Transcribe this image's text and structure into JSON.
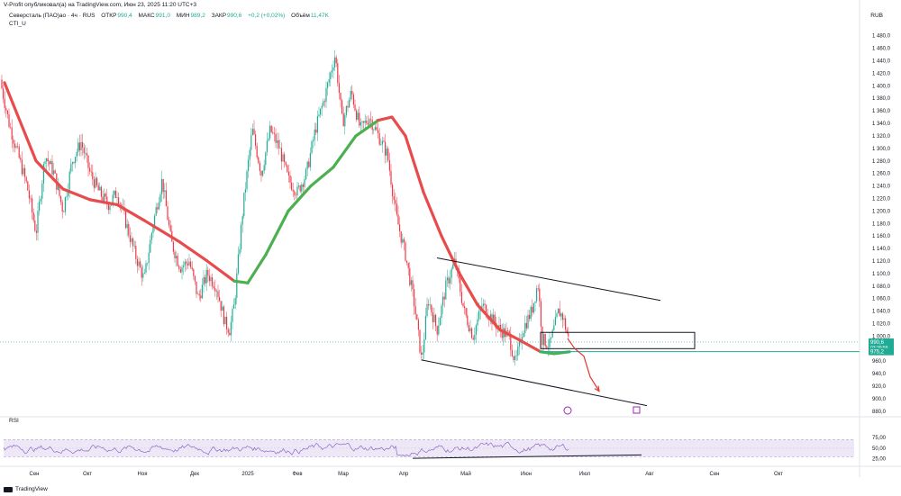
{
  "header": {
    "published": "V-Profit опубликовал(а) на TradingView.com, Июн 23, 2025 11:20 UTC+3"
  },
  "legend": {
    "symbol": "Северсталь (ПАО)ао · 4ч · RUS",
    "open_label": "ОТКР",
    "open": "990,4",
    "high_label": "МАКС",
    "high": "991,0",
    "low_label": "МИН",
    "low": "989,2",
    "close_label": "ЗАКР",
    "close": "990,6",
    "change": "+0,2 (+0,02%)",
    "volume_label": "Объём",
    "volume": "11,47K"
  },
  "indicator_label": "CTI_U",
  "currency": "RUB",
  "rsi_label": "RSI",
  "footer_brand": "TradingView",
  "colors": {
    "up": "#22ab94",
    "down": "#f23645",
    "cti_up": "#4caf50",
    "cti_down": "#e84b4b",
    "rsi_line": "#7e57c2",
    "rsi_band": "#ede7f6",
    "price_label": "#22ab94",
    "arrow": "#e53935"
  },
  "chart_data": [
    {
      "type": "candlestick",
      "title": "",
      "yaxis_ticks": [
        "1 480,0",
        "1 460,0",
        "1 440,0",
        "1 420,0",
        "1 400,0",
        "1 380,0",
        "1 360,0",
        "1 340,0",
        "1 320,0",
        "1 300,0",
        "1 280,0",
        "1 260,0",
        "1 240,0",
        "1 220,0",
        "1 200,0",
        "1 180,0",
        "1 160,0",
        "1 140,0",
        "1 120,0",
        "1 100,0",
        "1 080,0",
        "1 060,0",
        "1 040,0",
        "1 020,0",
        "1 000,0",
        "960,0",
        "940,0",
        "920,0",
        "900,0",
        "880,0"
      ],
      "yaxis_tick_values": [
        1480,
        1460,
        1440,
        1420,
        1400,
        1380,
        1360,
        1340,
        1320,
        1300,
        1280,
        1260,
        1240,
        1220,
        1200,
        1180,
        1160,
        1140,
        1120,
        1100,
        1080,
        1060,
        1040,
        1020,
        1000,
        960,
        940,
        920,
        900,
        880
      ],
      "ylim": [
        874,
        1494
      ],
      "xaxis_ticks": [
        "Сен",
        "Окт",
        "Ноя",
        "Дек",
        "2025",
        "Фев",
        "Мар",
        "Апр",
        "Май",
        "Июн",
        "Июл",
        "Авг",
        "Сен",
        "Окт"
      ],
      "price_labels": [
        {
          "value": 990.6,
          "text": "990,6",
          "sub": "03:39:59"
        },
        {
          "value": 975.2,
          "text": "975,2"
        }
      ],
      "price_path": [
        [
          0,
          1410
        ],
        [
          10,
          1340
        ],
        [
          20,
          1290
        ],
        [
          30,
          1240
        ],
        [
          40,
          1165
        ],
        [
          50,
          1290
        ],
        [
          60,
          1260
        ],
        [
          70,
          1200
        ],
        [
          80,
          1280
        ],
        [
          90,
          1310
        ],
        [
          100,
          1260
        ],
        [
          110,
          1230
        ],
        [
          120,
          1210
        ],
        [
          130,
          1230
        ],
        [
          140,
          1180
        ],
        [
          150,
          1130
        ],
        [
          160,
          1090
        ],
        [
          170,
          1180
        ],
        [
          180,
          1250
        ],
        [
          190,
          1150
        ],
        [
          200,
          1110
        ],
        [
          210,
          1120
        ],
        [
          220,
          1060
        ],
        [
          230,
          1100
        ],
        [
          240,
          1080
        ],
        [
          250,
          1020
        ],
        [
          255,
          1010
        ],
        [
          260,
          1050
        ],
        [
          270,
          1210
        ],
        [
          280,
          1330
        ],
        [
          290,
          1260
        ],
        [
          300,
          1330
        ],
        [
          310,
          1300
        ],
        [
          320,
          1250
        ],
        [
          330,
          1230
        ],
        [
          340,
          1260
        ],
        [
          350,
          1330
        ],
        [
          360,
          1380
        ],
        [
          372,
          1450
        ],
        [
          380,
          1340
        ],
        [
          390,
          1390
        ],
        [
          400,
          1330
        ],
        [
          410,
          1350
        ],
        [
          420,
          1320
        ],
        [
          430,
          1290
        ],
        [
          440,
          1190
        ],
        [
          450,
          1130
        ],
        [
          460,
          1050
        ],
        [
          468,
          960
        ],
        [
          475,
          1060
        ],
        [
          485,
          1010
        ],
        [
          495,
          1080
        ],
        [
          505,
          1120
        ],
        [
          515,
          1040
        ],
        [
          525,
          1000
        ],
        [
          535,
          1050
        ],
        [
          545,
          1030
        ],
        [
          555,
          1010
        ],
        [
          565,
          1000
        ],
        [
          572,
          955
        ],
        [
          580,
          1010
        ],
        [
          590,
          1040
        ],
        [
          597,
          1085
        ],
        [
          602,
          995
        ],
        [
          610,
          985
        ],
        [
          620,
          1040
        ],
        [
          625,
          1030
        ],
        [
          630,
          1000
        ],
        [
          632,
          990
        ]
      ],
      "cti_line": [
        [
          5,
          1405,
          "d"
        ],
        [
          40,
          1280,
          "d"
        ],
        [
          70,
          1235,
          "d"
        ],
        [
          100,
          1218,
          "d"
        ],
        [
          130,
          1210,
          "d"
        ],
        [
          160,
          1185,
          "d"
        ],
        [
          200,
          1150,
          "d"
        ],
        [
          230,
          1120,
          "d"
        ],
        [
          260,
          1088,
          "d"
        ],
        [
          275,
          1085,
          "u"
        ],
        [
          295,
          1130,
          "u"
        ],
        [
          320,
          1200,
          "u"
        ],
        [
          345,
          1240,
          "u"
        ],
        [
          370,
          1270,
          "u"
        ],
        [
          395,
          1320,
          "u"
        ],
        [
          420,
          1345,
          "u"
        ],
        [
          435,
          1350,
          "d"
        ],
        [
          450,
          1320,
          "d"
        ],
        [
          470,
          1230,
          "d"
        ],
        [
          490,
          1160,
          "d"
        ],
        [
          510,
          1100,
          "d"
        ],
        [
          530,
          1050,
          "d"
        ],
        [
          555,
          1010,
          "d"
        ],
        [
          575,
          995,
          "d"
        ],
        [
          600,
          975,
          "d"
        ],
        [
          615,
          972,
          "u"
        ],
        [
          632,
          975,
          "u"
        ]
      ],
      "channel_upper": [
        [
          485,
          1125
        ],
        [
          733,
          1057
        ]
      ],
      "channel_lower": [
        [
          468,
          962
        ],
        [
          718,
          889
        ]
      ],
      "zone_box": {
        "x_start": 600,
        "x_end": 771,
        "top": 1006,
        "bottom": 980
      },
      "support_level": 975.2,
      "forecast_arrow": [
        [
          630,
          996
        ],
        [
          638,
          980
        ],
        [
          648,
          968
        ],
        [
          655,
          935
        ],
        [
          665,
          912
        ]
      ],
      "event_icons": [
        {
          "x": 630,
          "name": "dividend"
        },
        {
          "x": 706,
          "name": "earnings"
        }
      ]
    },
    {
      "type": "line",
      "title": "",
      "ylim": [
        20,
        88
      ],
      "band": [
        30,
        70
      ],
      "yaxis_ticks": [
        "75,00",
        "50,00",
        "25,00"
      ],
      "yaxis_tick_values": [
        75,
        50,
        25
      ],
      "trendline": [
        [
          458,
          26
        ],
        [
          712,
          34
        ]
      ]
    }
  ]
}
